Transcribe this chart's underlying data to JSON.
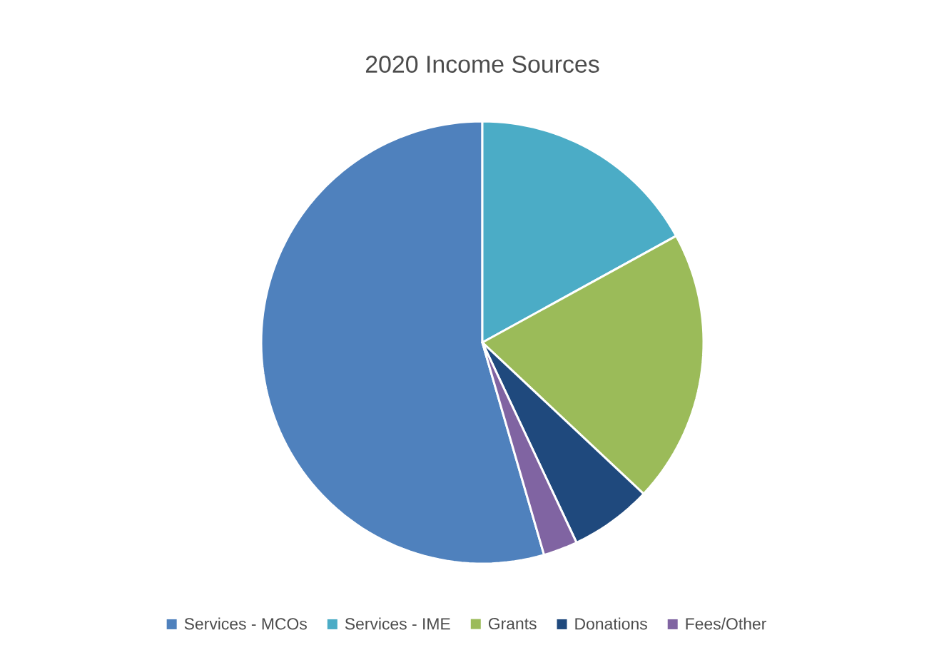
{
  "chart_data": {
    "type": "pie",
    "title": "2020 Income Sources",
    "categories": [
      "Services - MCOs",
      "Services - IME",
      "Grants",
      "Donations",
      "Fees/Other"
    ],
    "values": [
      54.5,
      17,
      20,
      6,
      2.5
    ],
    "colors": [
      "#4f81bd",
      "#4bacc6",
      "#9bbb59",
      "#1f497d",
      "#8064a2"
    ],
    "legend": "bottom"
  }
}
